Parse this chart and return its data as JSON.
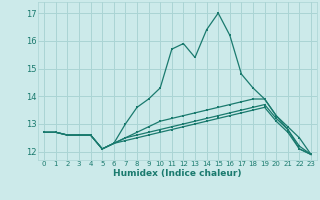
{
  "xlabel": "Humidex (Indice chaleur)",
  "bg_color": "#cceaea",
  "line_color": "#1a7a6e",
  "grid_color": "#aad4d4",
  "xlim": [
    -0.5,
    23.5
  ],
  "ylim": [
    11.7,
    17.4
  ],
  "xticks": [
    0,
    1,
    2,
    3,
    4,
    5,
    6,
    7,
    8,
    9,
    10,
    11,
    12,
    13,
    14,
    15,
    16,
    17,
    18,
    19,
    20,
    21,
    22,
    23
  ],
  "yticks": [
    12,
    13,
    14,
    15,
    16,
    17
  ],
  "lines": [
    [
      12.7,
      12.7,
      12.6,
      12.6,
      12.6,
      12.1,
      12.3,
      13.0,
      13.6,
      13.9,
      14.3,
      15.7,
      15.9,
      15.4,
      16.4,
      17.0,
      16.2,
      14.8,
      14.3,
      13.9,
      13.3,
      12.9,
      12.5,
      11.9
    ],
    [
      12.7,
      12.7,
      12.6,
      12.6,
      12.6,
      12.1,
      12.3,
      12.5,
      12.7,
      12.9,
      13.1,
      13.2,
      13.3,
      13.4,
      13.5,
      13.6,
      13.7,
      13.8,
      13.9,
      13.9,
      13.3,
      12.8,
      12.2,
      11.9
    ],
    [
      12.7,
      12.7,
      12.6,
      12.6,
      12.6,
      12.1,
      12.3,
      12.5,
      12.6,
      12.7,
      12.8,
      12.9,
      13.0,
      13.1,
      13.2,
      13.3,
      13.4,
      13.5,
      13.6,
      13.7,
      13.2,
      12.8,
      12.1,
      11.9
    ],
    [
      12.7,
      12.7,
      12.6,
      12.6,
      12.6,
      12.1,
      12.3,
      12.4,
      12.5,
      12.6,
      12.7,
      12.8,
      12.9,
      13.0,
      13.1,
      13.2,
      13.3,
      13.4,
      13.5,
      13.6,
      13.1,
      12.7,
      12.1,
      11.9
    ]
  ]
}
